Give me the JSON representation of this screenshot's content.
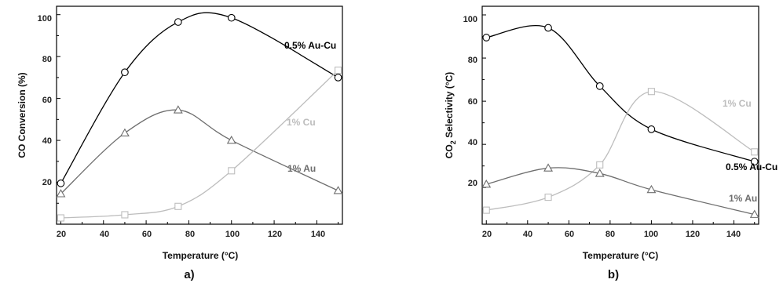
{
  "chart_data": [
    {
      "type": "line",
      "panel_label": "a)",
      "xlabel": "Temperature (°C)",
      "ylabel": "CO Conversion (%)",
      "xlim": [
        18,
        152
      ],
      "ylim": [
        0,
        104
      ],
      "xticks": [
        "20",
        "40",
        "60",
        "80",
        "100",
        "120",
        "140"
      ],
      "yticks": [
        "20",
        "40",
        "60",
        "80",
        "100"
      ],
      "series": [
        {
          "name": "0.5% Au-Cu",
          "marker": "circle",
          "color": "#000000",
          "x": [
            20,
            50,
            75,
            100,
            150
          ],
          "y": [
            19.5,
            72.5,
            96.5,
            98.5,
            70
          ]
        },
        {
          "name": "1% Au",
          "marker": "triangle",
          "color": "#6e6e6e",
          "x": [
            20,
            50,
            75,
            100,
            150
          ],
          "y": [
            14.5,
            43.5,
            54.5,
            40,
            16
          ]
        },
        {
          "name": "1% Cu",
          "marker": "square",
          "color": "#bdbdbd",
          "x": [
            20,
            50,
            75,
            100,
            150
          ],
          "y": [
            3,
            4.5,
            8.5,
            25.5,
            73.5
          ]
        }
      ]
    },
    {
      "type": "line",
      "panel_label": "b)",
      "xlabel": "Temperature (°C)",
      "ylabel_main": "CO",
      "ylabel_sub": "2",
      "ylabel_rest": " Selectivity (°C)",
      "xlim": [
        18,
        152
      ],
      "ylim": [
        3,
        104
      ],
      "xticks": [
        "20",
        "40",
        "60",
        "80",
        "100",
        "120",
        "140"
      ],
      "yticks": [
        "20",
        "40",
        "60",
        "80",
        "100"
      ],
      "series": [
        {
          "name": "0.5% Au-Cu",
          "marker": "circle",
          "color": "#000000",
          "x": [
            20,
            50,
            75,
            100,
            150
          ],
          "y": [
            89.5,
            94,
            67,
            47,
            32
          ]
        },
        {
          "name": "1% Cu",
          "marker": "square",
          "color": "#bdbdbd",
          "x": [
            20,
            50,
            75,
            100,
            150
          ],
          "y": [
            9.5,
            15.5,
            30.5,
            64.5,
            36.5
          ]
        },
        {
          "name": "1% Au",
          "marker": "triangle",
          "color": "#6e6e6e",
          "x": [
            20,
            50,
            75,
            100,
            150
          ],
          "y": [
            21.5,
            29,
            26.5,
            19,
            7.5
          ]
        }
      ]
    }
  ]
}
